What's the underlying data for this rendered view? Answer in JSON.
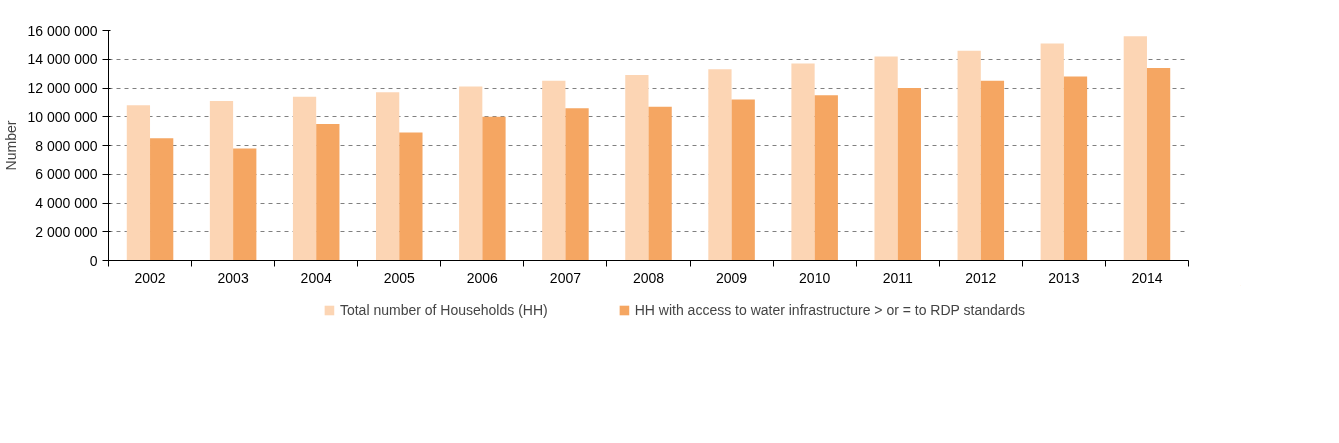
{
  "chart_data": {
    "type": "bar",
    "ylabel": "Number",
    "categories": [
      "2002",
      "2003",
      "2004",
      "2005",
      "2006",
      "2007",
      "2008",
      "2009",
      "2010",
      "2011",
      "2012",
      "2013",
      "2014"
    ],
    "series": [
      {
        "name": "Total number of Households (HH)",
        "color": "#fcd5b4",
        "values": [
          10800000,
          11100000,
          11400000,
          11700000,
          12100000,
          12500000,
          12900000,
          13300000,
          13700000,
          14200000,
          14600000,
          15100000,
          15600000
        ]
      },
      {
        "name": "HH with access to water infrastructure > or = to RDP standards",
        "color": "#f5a662",
        "values": [
          8500000,
          7800000,
          9500000,
          8900000,
          10000000,
          10600000,
          10700000,
          11200000,
          11500000,
          12000000,
          12500000,
          12800000,
          13400000
        ]
      }
    ],
    "ylim": [
      0,
      16000000
    ],
    "yticks": [
      {
        "value": 0,
        "label": "0"
      },
      {
        "value": 2000000,
        "label": "2 000 000"
      },
      {
        "value": 4000000,
        "label": "4 000 000"
      },
      {
        "value": 6000000,
        "label": "6 000 000"
      },
      {
        "value": 8000000,
        "label": "8 000 000"
      },
      {
        "value": 10000000,
        "label": "10 000 000"
      },
      {
        "value": 12000000,
        "label": "12 000 000"
      },
      {
        "value": 14000000,
        "label": "14 000 000"
      },
      {
        "value": 16000000,
        "label": "16 000 000"
      }
    ],
    "grid": "y",
    "legend": "bottom"
  }
}
